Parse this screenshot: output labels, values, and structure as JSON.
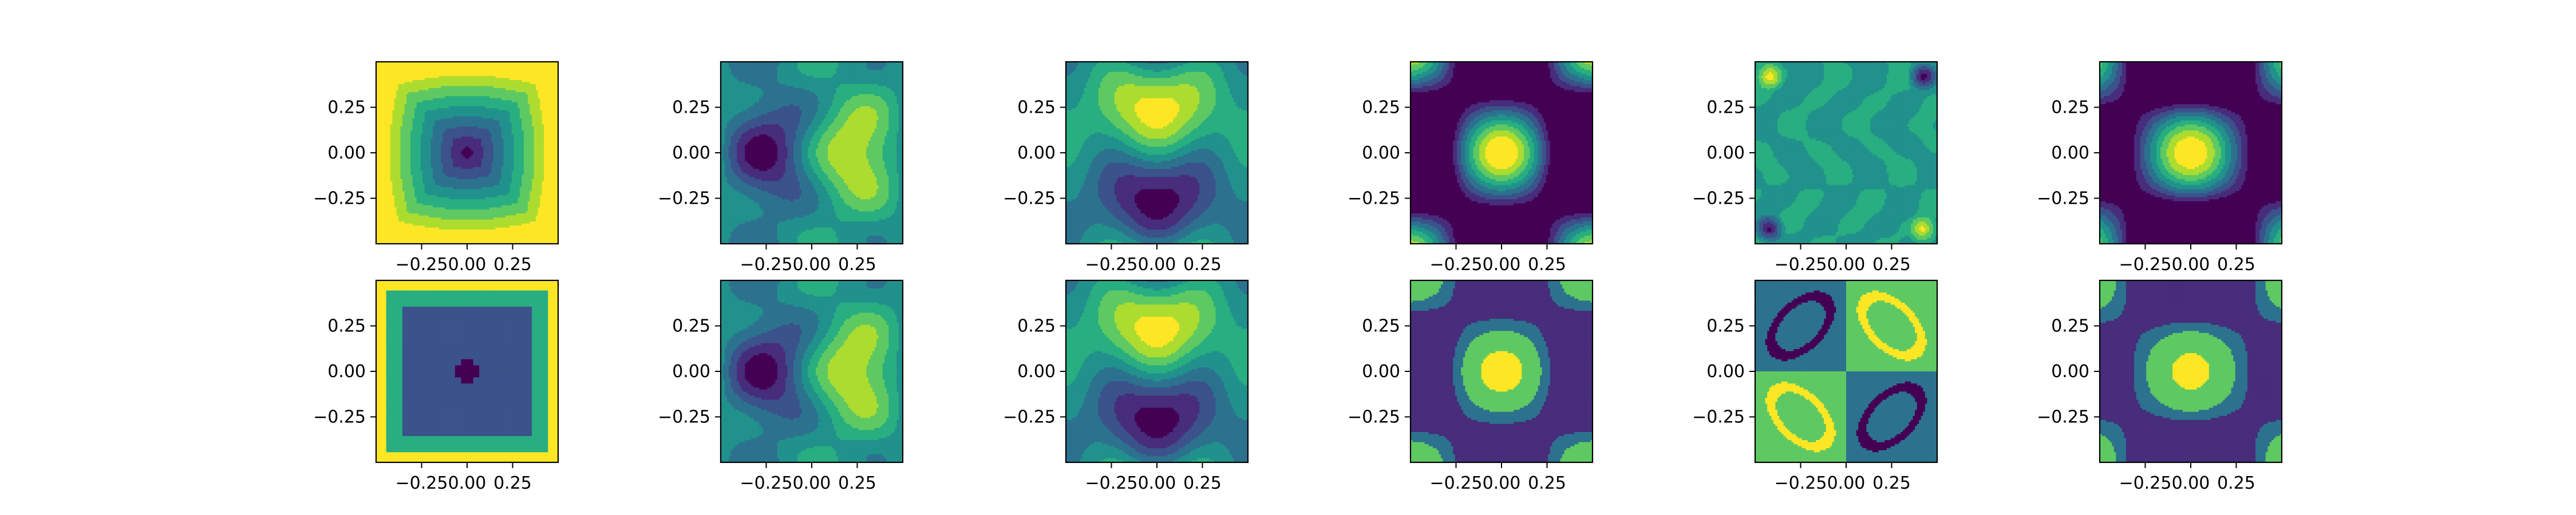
{
  "figure": {
    "rows": 2,
    "cols": 6
  },
  "chart_data": [
    {
      "type": "heatmap",
      "subplot": "row1-col1",
      "pattern": "center-well",
      "xlim": [
        -0.5,
        0.5
      ],
      "ylim": [
        -0.5,
        0.5
      ],
      "xticks": [
        "−0.25",
        "0.00",
        "0.25"
      ],
      "yticks": [
        "0.25",
        "0.00",
        "−0.25"
      ]
    },
    {
      "type": "heatmap",
      "subplot": "row1-col2",
      "pattern": "left-right-dipole",
      "xlim": [
        -0.5,
        0.5
      ],
      "ylim": [
        -0.5,
        0.5
      ],
      "xticks": [
        "−0.25",
        "0.00",
        "0.25"
      ],
      "yticks": [
        "0.25",
        "0.00",
        "−0.25"
      ]
    },
    {
      "type": "heatmap",
      "subplot": "row1-col3",
      "pattern": "top-bottom-dipole",
      "xlim": [
        -0.5,
        0.5
      ],
      "ylim": [
        -0.5,
        0.5
      ],
      "xticks": [
        "−0.25",
        "0.00",
        "0.25"
      ],
      "yticks": [
        "0.25",
        "0.00",
        "−0.25"
      ]
    },
    {
      "type": "heatmap",
      "subplot": "row1-col4",
      "pattern": "center-peak",
      "xlim": [
        -0.5,
        0.5
      ],
      "ylim": [
        -0.5,
        0.5
      ],
      "xticks": [
        "−0.25",
        "0.00",
        "0.25"
      ],
      "yticks": [
        "0.25",
        "0.00",
        "−0.25"
      ]
    },
    {
      "type": "heatmap",
      "subplot": "row1-col5",
      "pattern": "noise",
      "xlim": [
        -0.5,
        0.5
      ],
      "ylim": [
        -0.5,
        0.5
      ],
      "xticks": [
        "−0.25",
        "0.00",
        "0.25"
      ],
      "yticks": [
        "0.25",
        "0.00",
        "−0.25"
      ]
    },
    {
      "type": "heatmap",
      "subplot": "row1-col6",
      "pattern": "center-peak-wide",
      "xlim": [
        -0.5,
        0.5
      ],
      "ylim": [
        -0.5,
        0.5
      ],
      "xticks": [
        "−0.25",
        "0.00",
        "0.25"
      ],
      "yticks": [
        "0.25",
        "0.00",
        "−0.25"
      ]
    },
    {
      "type": "heatmap",
      "subplot": "row2-col1",
      "pattern": "center-well-cross",
      "xlim": [
        -0.5,
        0.5
      ],
      "ylim": [
        -0.5,
        0.5
      ],
      "xticks": [
        "−0.25",
        "0.00",
        "0.25"
      ],
      "yticks": [
        "0.25",
        "0.00",
        "−0.25"
      ]
    },
    {
      "type": "heatmap",
      "subplot": "row2-col2",
      "pattern": "left-right-dipole",
      "xlim": [
        -0.5,
        0.5
      ],
      "ylim": [
        -0.5,
        0.5
      ],
      "xticks": [
        "−0.25",
        "0.00",
        "0.25"
      ],
      "yticks": [
        "0.25",
        "0.00",
        "−0.25"
      ]
    },
    {
      "type": "heatmap",
      "subplot": "row2-col3",
      "pattern": "top-bottom-dipole",
      "xlim": [
        -0.5,
        0.5
      ],
      "ylim": [
        -0.5,
        0.5
      ],
      "xticks": [
        "−0.25",
        "0.00",
        "0.25"
      ],
      "yticks": [
        "0.25",
        "0.00",
        "−0.25"
      ]
    },
    {
      "type": "heatmap",
      "subplot": "row2-col4",
      "pattern": "center-peak-coarse",
      "xlim": [
        -0.5,
        0.5
      ],
      "ylim": [
        -0.5,
        0.5
      ],
      "xticks": [
        "−0.25",
        "0.00",
        "0.25"
      ],
      "yticks": [
        "0.25",
        "0.00",
        "−0.25"
      ]
    },
    {
      "type": "heatmap",
      "subplot": "row2-col5",
      "pattern": "quadrant-rings",
      "xlim": [
        -0.5,
        0.5
      ],
      "ylim": [
        -0.5,
        0.5
      ],
      "xticks": [
        "−0.25",
        "0.00",
        "0.25"
      ],
      "yticks": [
        "0.25",
        "0.00",
        "−0.25"
      ]
    },
    {
      "type": "heatmap",
      "subplot": "row2-col6",
      "pattern": "center-peak-coarse-wide",
      "xlim": [
        -0.5,
        0.5
      ],
      "ylim": [
        -0.5,
        0.5
      ],
      "xticks": [
        "−0.25",
        "0.00",
        "0.25"
      ],
      "yticks": [
        "0.25",
        "0.00",
        "−0.25"
      ]
    }
  ],
  "colormap": {
    "name": "viridis",
    "colors": [
      "#440154",
      "#472d7b",
      "#3b528b",
      "#2c728e",
      "#21918c",
      "#28ae80",
      "#5ec962",
      "#addc30",
      "#fde725"
    ]
  }
}
